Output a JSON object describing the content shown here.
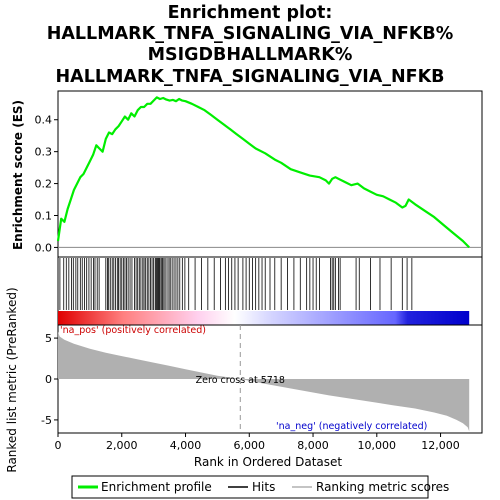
{
  "chart_data": {
    "type": "line",
    "title_lines": [
      "Enrichment plot:",
      "HALLMARK_TNFA_SIGNALING_VIA_NFKB%",
      "MSIGDBHALLMARK%",
      "HALLMARK_TNFA_SIGNALING_VIA_NFKB"
    ],
    "enrichment_panel": {
      "ylabel": "Enrichment score (ES)",
      "ylim": [
        -0.03,
        0.49
      ],
      "yticks": [
        0.0,
        0.1,
        0.2,
        0.3,
        0.4
      ],
      "ytick_labels": [
        "0.0",
        "0.1",
        "0.2",
        "0.3",
        "0.4"
      ],
      "series": [
        {
          "name": "Enrichment profile",
          "color": "#00ee00",
          "x": [
            0,
            100,
            200,
            300,
            400,
            500,
            600,
            700,
            800,
            900,
            1000,
            1100,
            1200,
            1300,
            1400,
            1500,
            1600,
            1700,
            1800,
            1900,
            2000,
            2100,
            2200,
            2300,
            2400,
            2500,
            2600,
            2700,
            2800,
            2900,
            3000,
            3100,
            3200,
            3300,
            3400,
            3500,
            3600,
            3700,
            3800,
            3900,
            4000,
            4200,
            4400,
            4600,
            4800,
            5000,
            5200,
            5400,
            5600,
            5800,
            6000,
            6200,
            6500,
            6800,
            7000,
            7300,
            7600,
            7900,
            8200,
            8400,
            8500,
            8600,
            8700,
            8800,
            9000,
            9200,
            9400,
            9600,
            9800,
            10000,
            10200,
            10400,
            10600,
            10800,
            10900,
            11000,
            11200,
            11500,
            11800,
            12100,
            12400,
            12700,
            12900
          ],
          "y": [
            0.02,
            0.09,
            0.08,
            0.12,
            0.15,
            0.18,
            0.2,
            0.22,
            0.23,
            0.25,
            0.27,
            0.29,
            0.32,
            0.31,
            0.3,
            0.34,
            0.36,
            0.355,
            0.37,
            0.38,
            0.395,
            0.41,
            0.4,
            0.42,
            0.41,
            0.43,
            0.44,
            0.44,
            0.45,
            0.45,
            0.46,
            0.47,
            0.465,
            0.468,
            0.463,
            0.46,
            0.462,
            0.458,
            0.465,
            0.46,
            0.458,
            0.45,
            0.44,
            0.43,
            0.415,
            0.4,
            0.385,
            0.37,
            0.355,
            0.34,
            0.325,
            0.31,
            0.295,
            0.275,
            0.265,
            0.245,
            0.235,
            0.225,
            0.22,
            0.21,
            0.2,
            0.215,
            0.22,
            0.215,
            0.205,
            0.195,
            0.2,
            0.185,
            0.175,
            0.165,
            0.16,
            0.15,
            0.14,
            0.125,
            0.13,
            0.15,
            0.135,
            0.115,
            0.095,
            0.07,
            0.045,
            0.02,
            0.0
          ]
        }
      ]
    },
    "hits": [
      60,
      180,
      260,
      340,
      420,
      480,
      560,
      620,
      700,
      760,
      830,
      900,
      970,
      1040,
      1110,
      1160,
      1230,
      1290,
      1500,
      1550,
      1590,
      1640,
      1700,
      1750,
      1800,
      1860,
      1900,
      1950,
      2000,
      2050,
      2100,
      2150,
      2200,
      2260,
      2320,
      2400,
      2450,
      2500,
      2550,
      2600,
      2660,
      2700,
      2750,
      2800,
      2850,
      2900,
      2950,
      3000,
      3050,
      3080,
      3110,
      3140,
      3170,
      3200,
      3240,
      3280,
      3320,
      3360,
      3420,
      3480,
      3520,
      3580,
      3640,
      3700,
      3760,
      3820,
      3900,
      3980,
      4100,
      4300,
      4500,
      4700,
      4900,
      5100,
      5250,
      5350,
      5450,
      5550,
      5650,
      5800,
      5900,
      6000,
      6100,
      6200,
      6300,
      6400,
      6500,
      6650,
      6800,
      7000,
      7200,
      7400,
      7600,
      7800,
      7900,
      8000,
      8100,
      8200,
      8550,
      8600,
      8650,
      8700,
      8800,
      8850,
      9350,
      9450,
      9800,
      10100,
      10450,
      10800,
      10950,
      11100
    ],
    "ranked_metric_panel": {
      "ylabel": "Ranked list metric (PreRanked)",
      "ylim": [
        -6.6,
        6.6
      ],
      "yticks": [
        -5,
        0,
        5
      ],
      "ytick_labels": [
        "-5",
        "0",
        "5"
      ],
      "series_name": "Ranking metric scores",
      "fill_color": "#b0b0b0",
      "x": [
        0,
        50,
        200,
        500,
        1000,
        1500,
        2000,
        2500,
        3000,
        3500,
        4000,
        4500,
        5000,
        5718,
        6500,
        7500,
        8500,
        9500,
        10500,
        11200,
        11800,
        12200,
        12500,
        12700,
        12850,
        12900
      ],
      "y": [
        5.8,
        5.2,
        4.8,
        4.3,
        3.7,
        3.2,
        2.8,
        2.4,
        2.0,
        1.6,
        1.2,
        0.8,
        0.4,
        0.0,
        -0.6,
        -1.3,
        -2.0,
        -2.6,
        -3.2,
        -3.6,
        -4.1,
        -4.5,
        -5.0,
        -5.4,
        -5.9,
        -6.4
      ],
      "zero_cross_label": "Zero cross at 5718",
      "zero_cross": 5718,
      "pos_label": "'na_pos' (positively correlated)",
      "neg_label": "'na_neg' (negatively correlated)",
      "pos_color": "#cc0000",
      "neg_color": "#0000cc"
    },
    "xlabel": "Rank in Ordered Dataset",
    "xlim": [
      0,
      13300
    ],
    "xticks": [
      0,
      2000,
      4000,
      6000,
      8000,
      10000,
      12000
    ],
    "xtick_labels": [
      "0",
      "2,000",
      "4,000",
      "6,000",
      "8,000",
      "10,000",
      "12,000"
    ],
    "total_rank": 12900,
    "legend": [
      {
        "label": "Enrichment profile",
        "color": "#00ee00"
      },
      {
        "label": "Hits",
        "color": "#000000"
      },
      {
        "label": "Ranking metric scores",
        "color": "#b0b0b0"
      }
    ]
  }
}
